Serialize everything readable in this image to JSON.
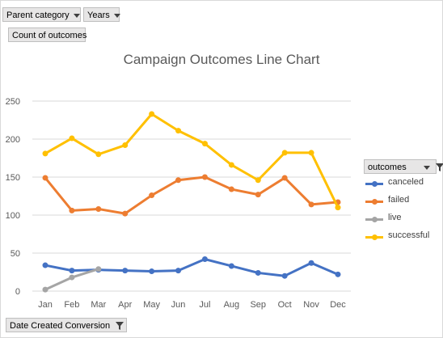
{
  "filters": {
    "parent_category": "Parent category",
    "years": "Years",
    "value_field": "Count of outcomes",
    "axis_field": "Date Created Conversion"
  },
  "legend": {
    "title": "outcomes"
  },
  "colors": {
    "canceled": "#4472c4",
    "failed": "#ed7d31",
    "live": "#a5a5a5",
    "successful": "#ffc000",
    "grid": "#d9d9d9"
  },
  "icons": {
    "dropdown": "chevron-down-icon",
    "filter": "filter-icon"
  },
  "chart_data": {
    "type": "line",
    "title": "Campaign Outcomes Line Chart",
    "xlabel": "",
    "ylabel": "",
    "categories": [
      "Jan",
      "Feb",
      "Mar",
      "Apr",
      "May",
      "Jun",
      "Jul",
      "Aug",
      "Sep",
      "Oct",
      "Nov",
      "Dec"
    ],
    "ylim": [
      0,
      250
    ],
    "yticks": [
      0,
      50,
      100,
      150,
      200,
      250
    ],
    "grid": true,
    "legend_position": "right",
    "series": [
      {
        "name": "canceled",
        "values": [
          34,
          27,
          28,
          27,
          26,
          27,
          42,
          33,
          24,
          20,
          37,
          22
        ]
      },
      {
        "name": "failed",
        "values": [
          149,
          106,
          108,
          102,
          126,
          146,
          150,
          134,
          127,
          149,
          114,
          117
        ]
      },
      {
        "name": "live",
        "values": [
          2,
          18,
          29,
          null,
          null,
          null,
          null,
          null,
          null,
          null,
          null,
          null
        ]
      },
      {
        "name": "successful",
        "values": [
          181,
          201,
          180,
          192,
          233,
          211,
          194,
          166,
          146,
          182,
          182,
          110
        ]
      }
    ]
  }
}
